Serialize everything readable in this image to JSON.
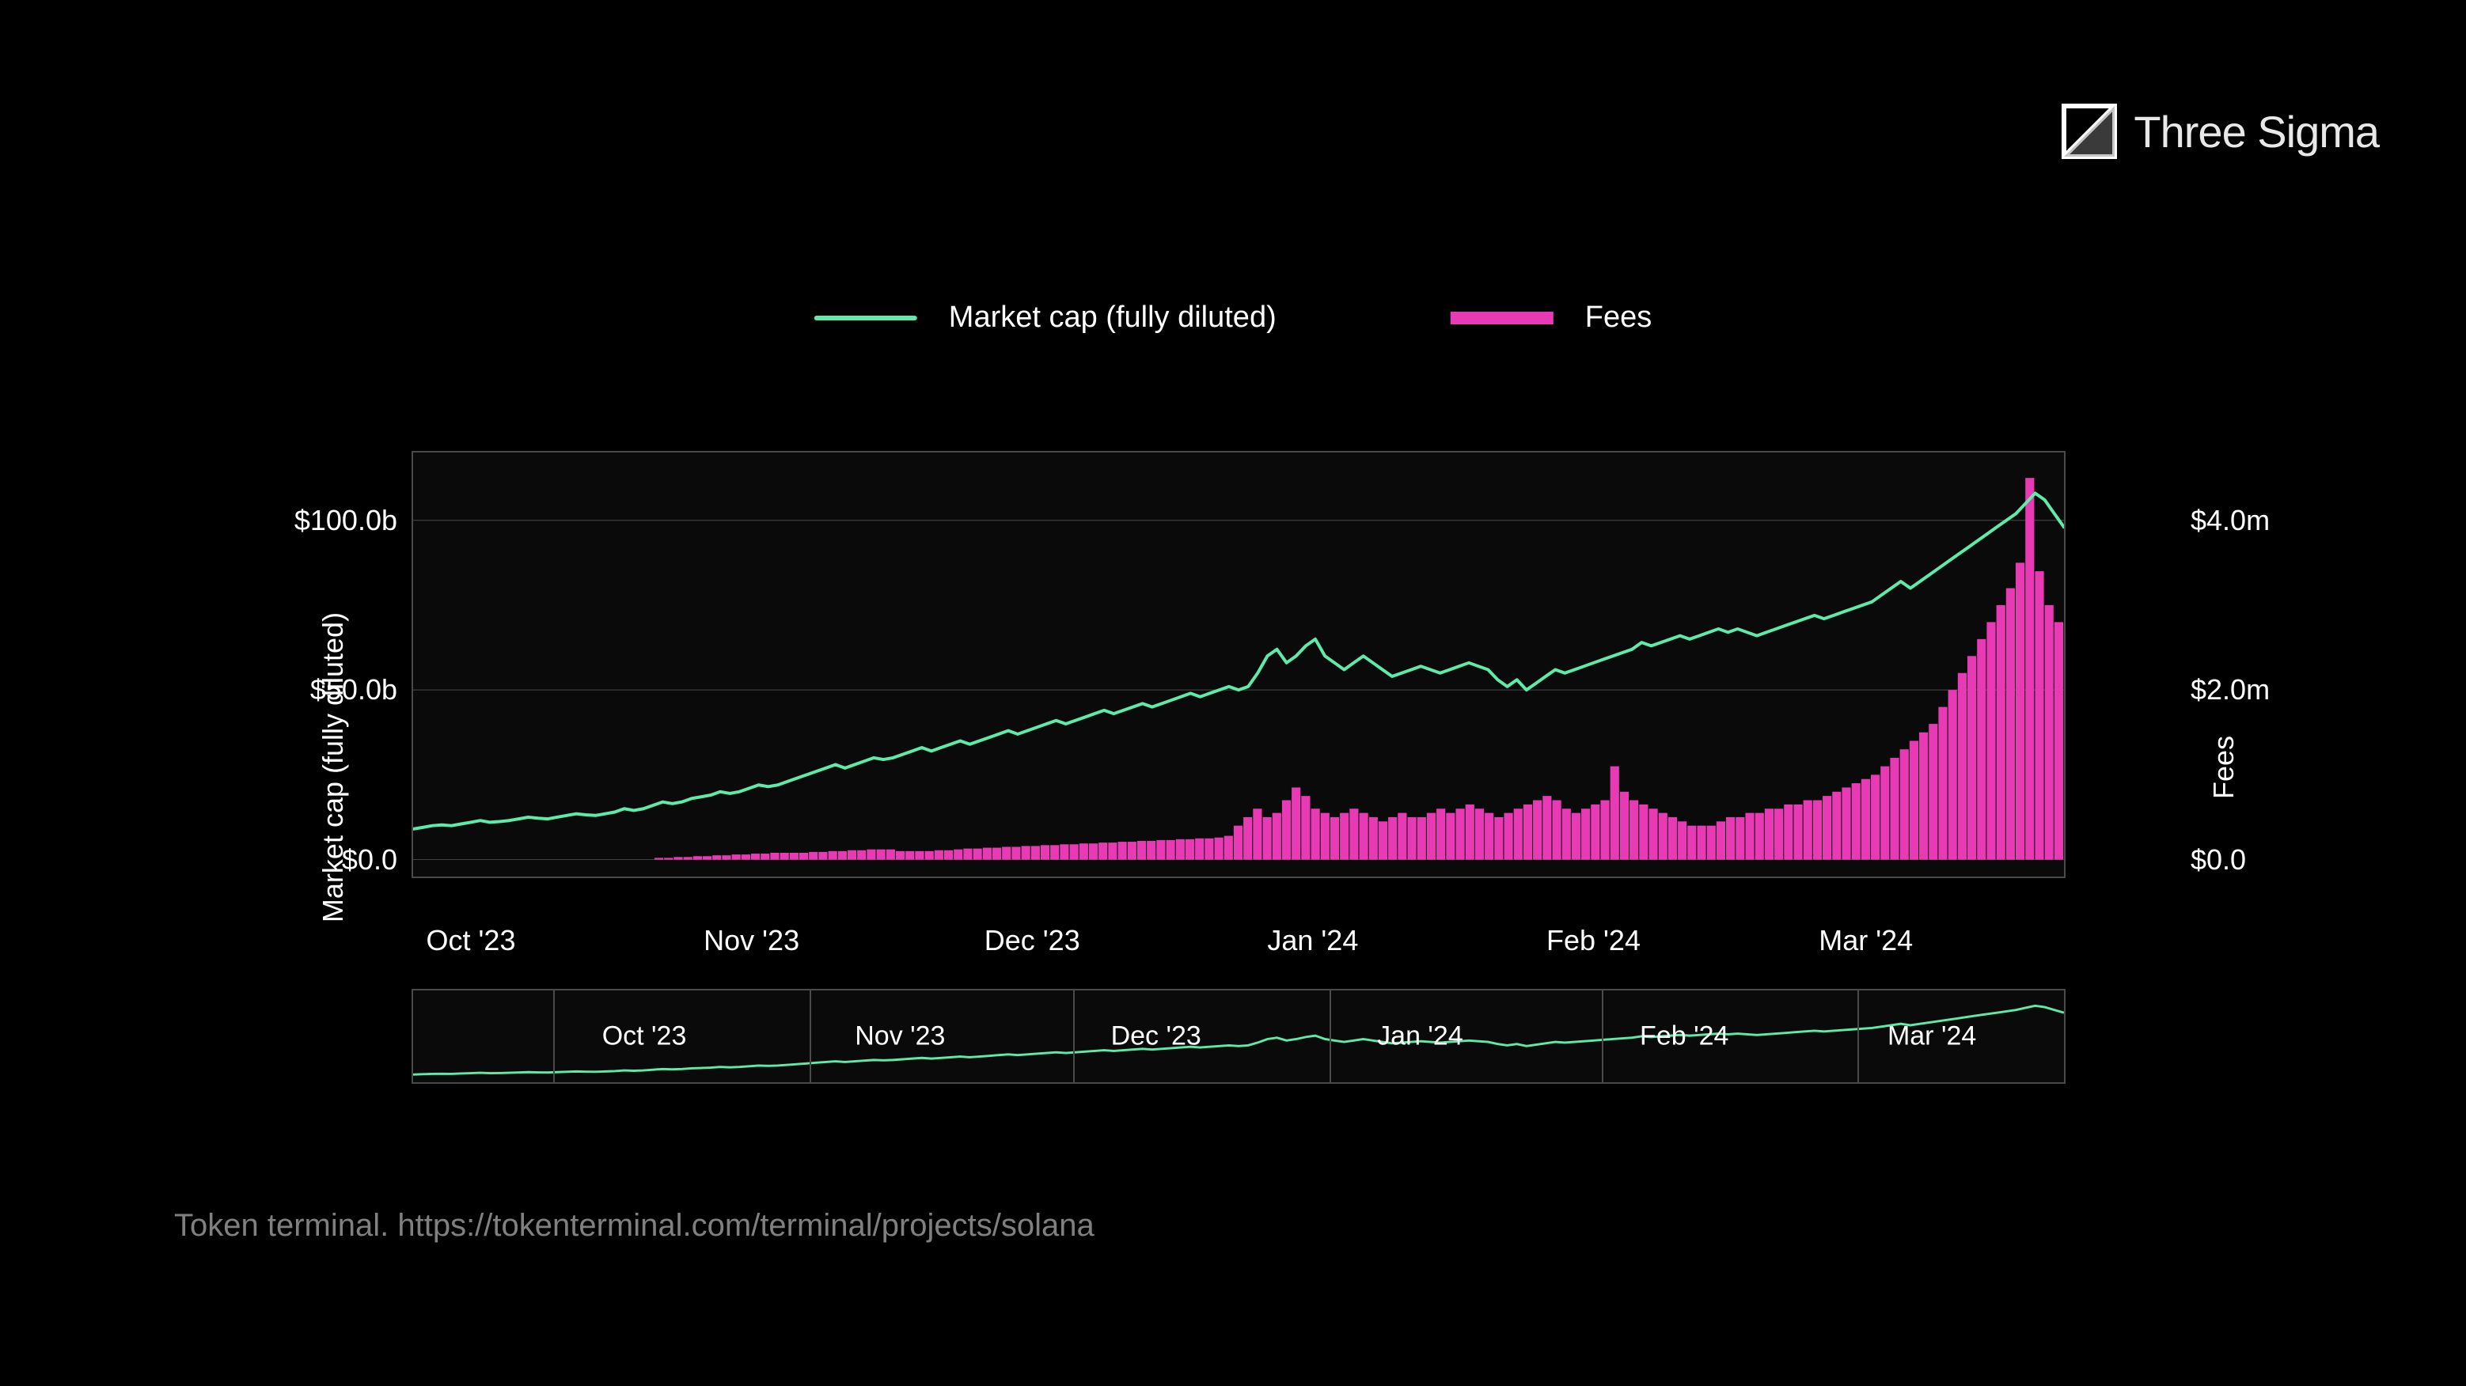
{
  "brand": {
    "name": "Three Sigma"
  },
  "legend": {
    "series1": {
      "label": "Market cap (fully diluted)",
      "color": "#5eeaa8",
      "type": "line"
    },
    "series2": {
      "label": "Fees",
      "color": "#e83ab5",
      "type": "bar"
    }
  },
  "chart": {
    "type": "dual-axis-line-bar",
    "background_color": "#0a0a0a",
    "border_color": "#4a4a4a",
    "grid_color": "#4a4a4a",
    "text_color": "#ffffff",
    "y_left": {
      "label": "Market cap (fully diluted)",
      "min": -5,
      "max": 120,
      "ticks": [
        {
          "value": 0,
          "label": "$0.0"
        },
        {
          "value": 50,
          "label": "$50.0b"
        },
        {
          "value": 100,
          "label": "$100.0b"
        }
      ]
    },
    "y_right": {
      "label": "Fees",
      "min": -0.2,
      "max": 4.8,
      "ticks": [
        {
          "value": 0,
          "label": "$0.0"
        },
        {
          "value": 2,
          "label": "$2.0m"
        },
        {
          "value": 4,
          "label": "$4.0m"
        }
      ]
    },
    "x_ticks": [
      {
        "pos": 0.035,
        "label": "Oct '23"
      },
      {
        "pos": 0.205,
        "label": "Nov '23"
      },
      {
        "pos": 0.375,
        "label": "Dec '23"
      },
      {
        "pos": 0.545,
        "label": "Jan '24"
      },
      {
        "pos": 0.715,
        "label": "Feb '24"
      },
      {
        "pos": 0.88,
        "label": "Mar '24"
      }
    ],
    "line_series": {
      "color": "#5eeaa8",
      "stroke_width": 4,
      "values": [
        9,
        9.5,
        10,
        10.2,
        10,
        10.5,
        11,
        11.5,
        11,
        11.2,
        11.5,
        12,
        12.5,
        12.2,
        12,
        12.5,
        13,
        13.5,
        13.2,
        13,
        13.5,
        14,
        15,
        14.5,
        15,
        16,
        17,
        16.5,
        17,
        18,
        18.5,
        19,
        20,
        19.5,
        20,
        21,
        22,
        21.5,
        22,
        23,
        24,
        25,
        26,
        27,
        28,
        27,
        28,
        29,
        30,
        29.5,
        30,
        31,
        32,
        33,
        32,
        33,
        34,
        35,
        34,
        35,
        36,
        37,
        38,
        37,
        38,
        39,
        40,
        41,
        40,
        41,
        42,
        43,
        44,
        43,
        44,
        45,
        46,
        45,
        46,
        47,
        48,
        49,
        48,
        49,
        50,
        51,
        50,
        51,
        55,
        60,
        62,
        58,
        60,
        63,
        65,
        60,
        58,
        56,
        58,
        60,
        58,
        56,
        54,
        55,
        56,
        57,
        56,
        55,
        56,
        57,
        58,
        57,
        56,
        53,
        51,
        53,
        50,
        52,
        54,
        56,
        55,
        56,
        57,
        58,
        59,
        60,
        61,
        62,
        64,
        63,
        64,
        65,
        66,
        65,
        66,
        67,
        68,
        67,
        68,
        67,
        66,
        67,
        68,
        69,
        70,
        71,
        72,
        71,
        72,
        73,
        74,
        75,
        76,
        78,
        80,
        82,
        80,
        82,
        84,
        86,
        88,
        90,
        92,
        94,
        96,
        98,
        100,
        102,
        105,
        108,
        106,
        102,
        98
      ]
    },
    "bar_series": {
      "color": "#e83ab5",
      "values": [
        0,
        0,
        0,
        0,
        0,
        0,
        0,
        0,
        0,
        0,
        0,
        0,
        0,
        0,
        0,
        0,
        0,
        0,
        0,
        0,
        0,
        0,
        0,
        0,
        0,
        0.02,
        0.02,
        0.03,
        0.03,
        0.04,
        0.04,
        0.05,
        0.05,
        0.06,
        0.06,
        0.07,
        0.07,
        0.08,
        0.08,
        0.08,
        0.08,
        0.09,
        0.09,
        0.1,
        0.1,
        0.11,
        0.11,
        0.12,
        0.12,
        0.12,
        0.1,
        0.1,
        0.1,
        0.1,
        0.11,
        0.11,
        0.12,
        0.13,
        0.13,
        0.14,
        0.14,
        0.15,
        0.15,
        0.16,
        0.16,
        0.17,
        0.17,
        0.18,
        0.18,
        0.19,
        0.19,
        0.2,
        0.2,
        0.21,
        0.21,
        0.22,
        0.22,
        0.23,
        0.23,
        0.24,
        0.24,
        0.25,
        0.25,
        0.26,
        0.28,
        0.4,
        0.5,
        0.6,
        0.5,
        0.55,
        0.7,
        0.85,
        0.75,
        0.6,
        0.55,
        0.5,
        0.55,
        0.6,
        0.55,
        0.5,
        0.45,
        0.5,
        0.55,
        0.5,
        0.5,
        0.55,
        0.6,
        0.55,
        0.6,
        0.65,
        0.6,
        0.55,
        0.5,
        0.55,
        0.6,
        0.65,
        0.7,
        0.75,
        0.7,
        0.6,
        0.55,
        0.6,
        0.65,
        0.7,
        1.1,
        0.8,
        0.7,
        0.65,
        0.6,
        0.55,
        0.5,
        0.45,
        0.4,
        0.4,
        0.4,
        0.45,
        0.5,
        0.5,
        0.55,
        0.55,
        0.6,
        0.6,
        0.65,
        0.65,
        0.7,
        0.7,
        0.75,
        0.8,
        0.85,
        0.9,
        0.95,
        1.0,
        1.1,
        1.2,
        1.3,
        1.4,
        1.5,
        1.6,
        1.8,
        2.0,
        2.2,
        2.4,
        2.6,
        2.8,
        3.0,
        3.2,
        3.5,
        4.5,
        3.4,
        3.0,
        2.8
      ]
    }
  },
  "brush": {
    "border_color": "#4a4a4a",
    "line_color": "#5eeaa8",
    "dividers": [
      0.085,
      0.24,
      0.4,
      0.555,
      0.72,
      0.875
    ],
    "x_ticks": [
      {
        "pos": 0.14,
        "label": "Oct '23"
      },
      {
        "pos": 0.295,
        "label": "Nov '23"
      },
      {
        "pos": 0.45,
        "label": "Dec '23"
      },
      {
        "pos": 0.61,
        "label": "Jan '24"
      },
      {
        "pos": 0.77,
        "label": "Feb '24"
      },
      {
        "pos": 0.92,
        "label": "Mar '24"
      }
    ]
  },
  "source": {
    "text": "Token terminal. https://tokenterminal.com/terminal/projects/solana"
  }
}
